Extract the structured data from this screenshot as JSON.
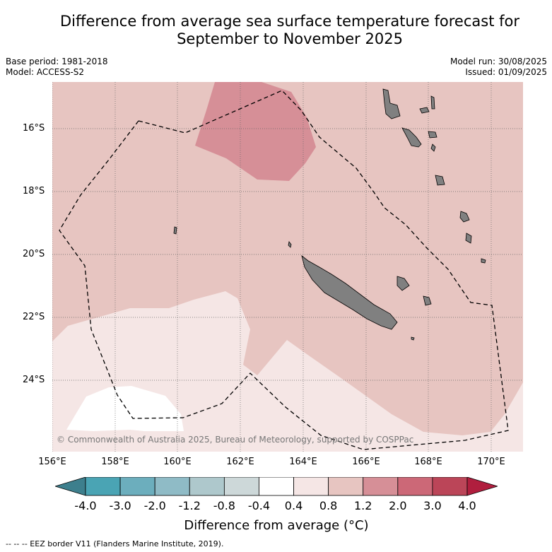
{
  "title": {
    "line1": "Difference from average sea surface temperature forecast for",
    "line2": "September to November 2025"
  },
  "meta": {
    "base_period": "Base period: 1981-2018",
    "model": "Model: ACCESS-S2",
    "model_run": "Model run: 30/08/2025",
    "issued": "Issued: 01/09/2025"
  },
  "axes": {
    "x_ticks": [
      "156°E",
      "158°E",
      "160°E",
      "162°E",
      "164°E",
      "166°E",
      "168°E",
      "170°E"
    ],
    "y_ticks": [
      "16°S",
      "18°S",
      "20°S",
      "22°S",
      "24°S"
    ]
  },
  "copyright": "© Commonwealth of Australia 2025, Bureau of Meteorology, supported by COSPPac",
  "colorbar": {
    "labels": [
      "-4.0",
      "-3.0",
      "-2.0",
      "-1.2",
      "-0.8",
      "-0.4",
      "0.4",
      "0.8",
      "1.2",
      "2.0",
      "3.0",
      "4.0"
    ],
    "colors": [
      "#4aa4b4",
      "#6caebd",
      "#8fbbc6",
      "#aec8cc",
      "#cdd8d9",
      "#ffffff",
      "#f5e6e5",
      "#e7c5c1",
      "#d68f97",
      "#cc6877",
      "#bb4558"
    ],
    "low_color": "#3d7f8d",
    "high_color": "#b01e3e",
    "title": "Difference from average (°C)"
  },
  "footnote": "--  --  -- EEZ border V11 (Flanders Marine Institute, 2019).",
  "map_colors": {
    "band_04_08": "#f5e6e5",
    "band_08_12": "#e7c5c1",
    "band_12_20": "#d68f97",
    "band_neutral": "#ffffff",
    "land": "#808080"
  }
}
